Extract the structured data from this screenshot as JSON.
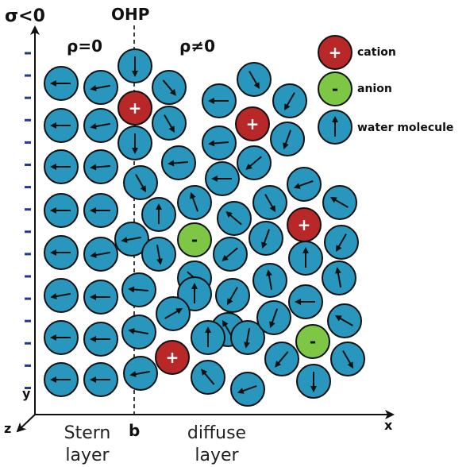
{
  "labels": {
    "surface_charge": "σ<0",
    "ohp": "OHP",
    "rho_zero": "ρ=0",
    "rho_nonzero": "ρ≠0",
    "axis_y": "y",
    "axis_x": "x",
    "axis_z": "z",
    "boundary_b": "b",
    "stern_line1": "Stern",
    "stern_line2": "layer",
    "diffuse_line1": "diffuse",
    "diffuse_line2": "layer"
  },
  "legend": [
    {
      "kind": "cation",
      "label": "cation",
      "symbol": "+"
    },
    {
      "kind": "anion",
      "label": "anion",
      "symbol": "-"
    },
    {
      "kind": "water",
      "label": "water molecule"
    }
  ],
  "colors": {
    "water": "#2996bd",
    "cation": "#b82828",
    "anion": "#7dc744",
    "outline": "#111111",
    "surface_charge_marks": "#1f3a8f"
  },
  "surface_charge_marks": 16,
  "ion_symbols": {
    "cation": "+",
    "anion": "-"
  },
  "water_dipole_angles_deg": [
    180,
    190,
    180,
    190,
    180,
    185,
    180,
    180,
    180,
    190,
    190,
    180,
    180,
    180,
    180,
    180,
    270,
    270,
    300,
    310,
    300,
    185,
    190,
    175,
    170,
    190,
    180,
    185,
    180,
    300,
    220,
    240,
    250,
    200,
    300,
    150,
    110,
    90,
    280,
    320,
    140,
    220,
    250,
    100,
    240,
    90,
    120,
    90,
    30,
    130,
    200,
    260,
    90,
    240,
    180,
    250,
    100,
    230,
    270,
    150,
    300,
    180,
    210,
    100,
    200,
    280,
    230,
    270,
    90,
    240,
    290,
    180,
    210,
    120,
    150,
    90
  ],
  "icons": {
    "dipole": "dipole-arrow-icon",
    "axis": "axis-arrow-icon"
  }
}
